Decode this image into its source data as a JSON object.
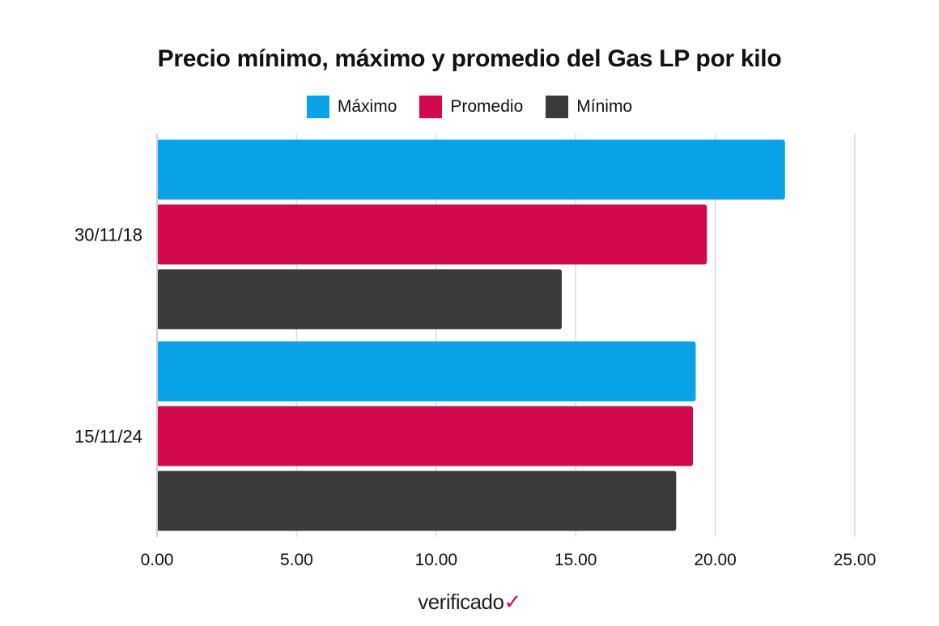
{
  "chart_data": {
    "type": "bar",
    "orientation": "horizontal",
    "title": "Precio mínimo, máximo y promedio del Gas LP por kilo",
    "categories": [
      "30/11/18",
      "15/11/24"
    ],
    "series": [
      {
        "name": "Máximo",
        "color": "#0aa3e8",
        "values": [
          22.5,
          19.3
        ]
      },
      {
        "name": "Promedio",
        "color": "#d10a4d",
        "values": [
          19.7,
          19.2
        ]
      },
      {
        "name": "Mínimo",
        "color": "#3a3a3a",
        "values": [
          14.5,
          18.6
        ]
      }
    ],
    "xlim": [
      0,
      25
    ],
    "x_ticks": [
      "0.00",
      "5.00",
      "10.00",
      "15.00",
      "20.00",
      "25.00"
    ],
    "x_tick_values": [
      0,
      5,
      10,
      15,
      20,
      25
    ],
    "grid": true,
    "legend_position": "top-center"
  },
  "source": {
    "logo_text": "verificado"
  }
}
